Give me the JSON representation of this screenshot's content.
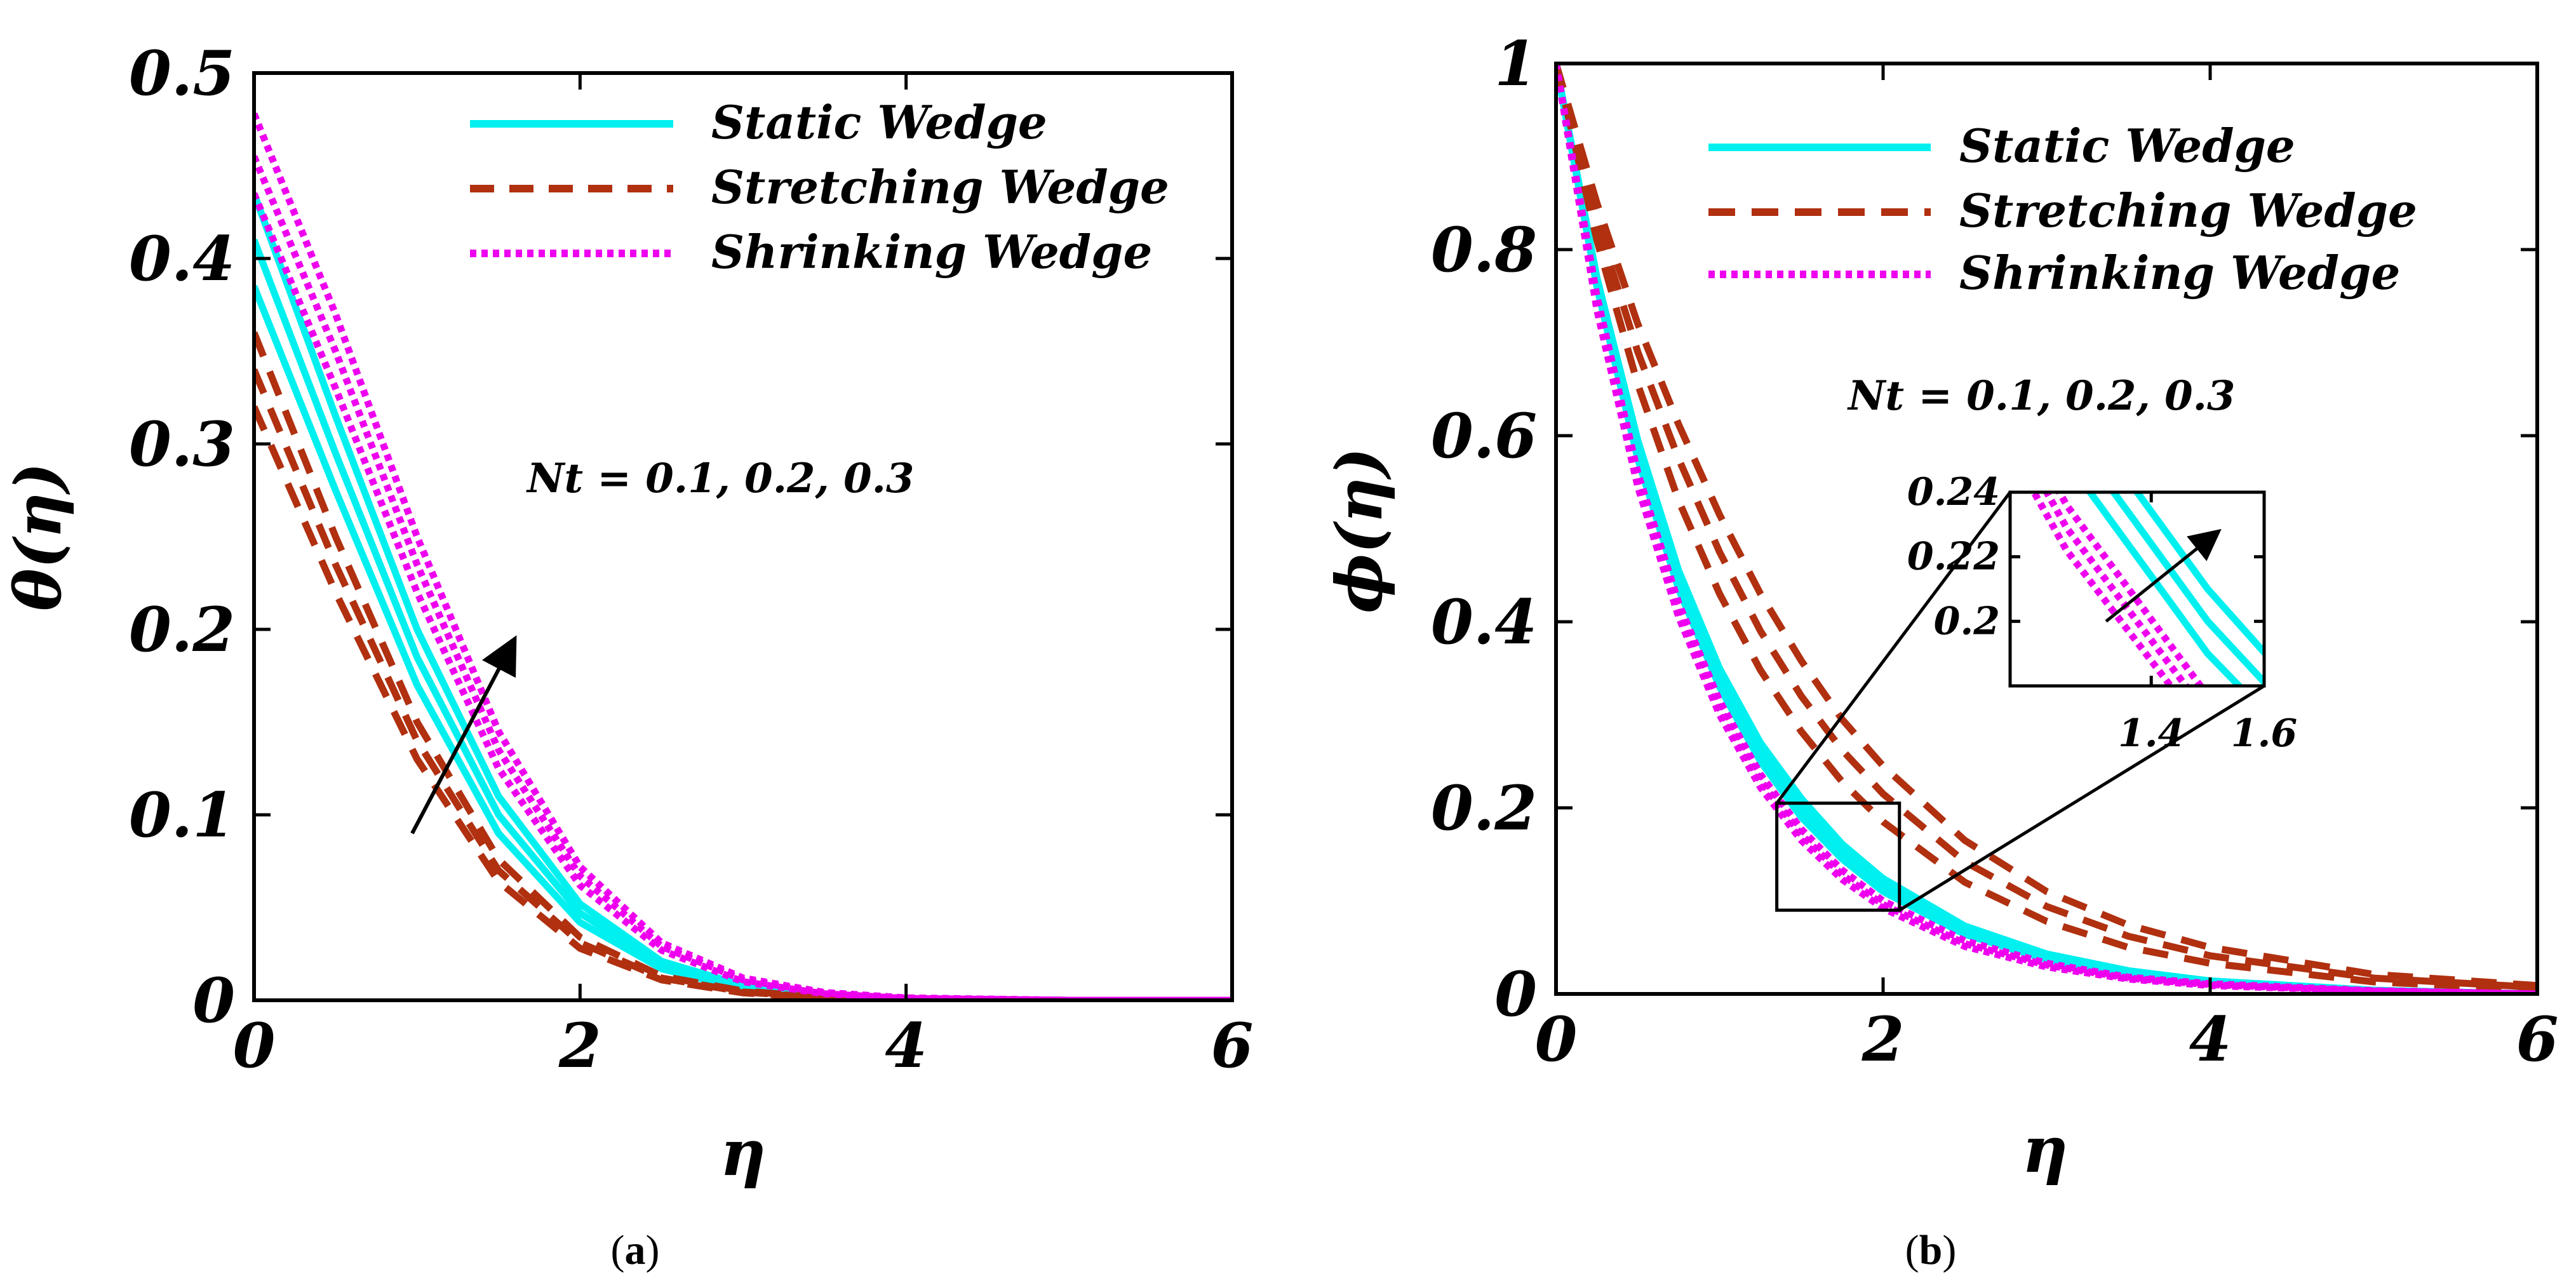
{
  "colors": {
    "static": "#00f0f0",
    "stretching": "#b03010",
    "shrinking": "#ee00ee",
    "axis": "#000000"
  },
  "legend": {
    "static": "Static Wedge",
    "stretching": "Stretching Wedge",
    "shrinking": "Shrinking Wedge"
  },
  "chart_data": [
    {
      "id": "a",
      "type": "line",
      "caption_open": "(",
      "caption_letter": "a",
      "caption_close": ")",
      "title": "",
      "xlabel": "η",
      "ylabel": "θ(η)",
      "xlim": [
        0,
        6
      ],
      "ylim": [
        0,
        0.5
      ],
      "xticks": [
        "0",
        "2",
        "4",
        "6"
      ],
      "yticks": [
        "0",
        "0.1",
        "0.2",
        "0.3",
        "0.4",
        "0.5"
      ],
      "xtick_values": [
        0,
        2,
        4,
        6
      ],
      "ytick_values": [
        0,
        0.1,
        0.2,
        0.3,
        0.4,
        0.5
      ],
      "annotation": "Nt = 0.1, 0.2, 0.3",
      "arrow": {
        "from": [
          0.97,
          0.09
        ],
        "to": [
          1.6,
          0.195
        ]
      },
      "series": [
        {
          "name": "Static Wedge, Nt = 0.1",
          "group": "static",
          "x": [
            0,
            0.5,
            1,
            1.5,
            2,
            2.5,
            3,
            3.5,
            4,
            5,
            6
          ],
          "values": [
            0.385,
            0.275,
            0.17,
            0.09,
            0.042,
            0.017,
            0.006,
            0.002,
            0.0006,
            0,
            0
          ]
        },
        {
          "name": "Static Wedge, Nt = 0.2",
          "group": "static",
          "x": [
            0,
            0.5,
            1,
            1.5,
            2,
            2.5,
            3,
            3.5,
            4,
            5,
            6
          ],
          "values": [
            0.41,
            0.295,
            0.185,
            0.1,
            0.047,
            0.019,
            0.007,
            0.002,
            0.0007,
            0,
            0
          ]
        },
        {
          "name": "Static Wedge, Nt = 0.3",
          "group": "static",
          "x": [
            0,
            0.5,
            1,
            1.5,
            2,
            2.5,
            3,
            3.5,
            4,
            5,
            6
          ],
          "values": [
            0.435,
            0.315,
            0.2,
            0.11,
            0.052,
            0.021,
            0.008,
            0.0025,
            0.0008,
            0,
            0
          ]
        },
        {
          "name": "Stretching Wedge, Nt = 0.1",
          "group": "stretching",
          "x": [
            0,
            0.5,
            1,
            1.5,
            2,
            2.5,
            3,
            3.5,
            4,
            5,
            6
          ],
          "values": [
            0.32,
            0.22,
            0.13,
            0.064,
            0.028,
            0.011,
            0.004,
            0.0012,
            0.0004,
            0,
            0
          ]
        },
        {
          "name": "Stretching Wedge, Nt = 0.2",
          "group": "stretching",
          "x": [
            0,
            0.5,
            1,
            1.5,
            2,
            2.5,
            3,
            3.5,
            4,
            5,
            6
          ],
          "values": [
            0.34,
            0.235,
            0.14,
            0.07,
            0.031,
            0.012,
            0.0045,
            0.0014,
            0.0004,
            0,
            0
          ]
        },
        {
          "name": "Stretching Wedge, Nt = 0.3",
          "group": "stretching",
          "x": [
            0,
            0.5,
            1,
            1.5,
            2,
            2.5,
            3,
            3.5,
            4,
            5,
            6
          ],
          "values": [
            0.36,
            0.25,
            0.15,
            0.076,
            0.034,
            0.013,
            0.005,
            0.0015,
            0.0005,
            0,
            0
          ]
        },
        {
          "name": "Shrinking Wedge, Nt = 0.1",
          "group": "shrinking",
          "x": [
            0,
            0.5,
            1,
            1.5,
            2,
            2.5,
            3,
            3.5,
            4,
            5,
            6
          ],
          "values": [
            0.435,
            0.33,
            0.22,
            0.125,
            0.062,
            0.027,
            0.01,
            0.0035,
            0.001,
            0,
            0
          ]
        },
        {
          "name": "Shrinking Wedge, Nt = 0.2",
          "group": "shrinking",
          "x": [
            0,
            0.5,
            1,
            1.5,
            2,
            2.5,
            3,
            3.5,
            4,
            5,
            6
          ],
          "values": [
            0.455,
            0.35,
            0.235,
            0.135,
            0.067,
            0.029,
            0.011,
            0.004,
            0.0012,
            0,
            0
          ]
        },
        {
          "name": "Shrinking Wedge, Nt = 0.3",
          "group": "shrinking",
          "x": [
            0,
            0.5,
            1,
            1.5,
            2,
            2.5,
            3,
            3.5,
            4,
            5,
            6
          ],
          "values": [
            0.478,
            0.37,
            0.25,
            0.145,
            0.072,
            0.031,
            0.012,
            0.0042,
            0.0013,
            0,
            0
          ]
        }
      ]
    },
    {
      "id": "b",
      "type": "line",
      "caption_open": "(",
      "caption_letter": "b",
      "caption_close": ")",
      "title": "",
      "xlabel": "η",
      "ylabel": "ϕ(η)",
      "xlim": [
        0,
        6
      ],
      "ylim": [
        0,
        1
      ],
      "xticks": [
        "0",
        "2",
        "4",
        "6"
      ],
      "yticks": [
        "0",
        "0.2",
        "0.4",
        "0.6",
        "0.8",
        "1"
      ],
      "xtick_values": [
        0,
        2,
        4,
        6
      ],
      "ytick_values": [
        0,
        0.2,
        0.4,
        0.6,
        0.8,
        1
      ],
      "annotation": "Nt = 0.1, 0.2, 0.3",
      "inset": {
        "source_xlim": [
          1.35,
          2.1
        ],
        "source_ylim": [
          0.09,
          0.205
        ],
        "xlim": [
          1.15,
          1.6
        ],
        "ylim": [
          0.18,
          0.24
        ],
        "xticks": [
          "1.4",
          "1.6"
        ],
        "yticks": [
          "0.2",
          "0.22",
          "0.24"
        ],
        "xtick_values": [
          1.4,
          1.6
        ],
        "ytick_values": [
          0.2,
          0.22,
          0.24
        ],
        "arrow": {
          "from": [
            1.32,
            0.2
          ],
          "to": [
            1.52,
            0.228
          ]
        }
      },
      "series": [
        {
          "name": "Static Wedge, Nt = 0.1",
          "group": "static",
          "x": [
            0,
            0.25,
            0.5,
            0.75,
            1,
            1.25,
            1.5,
            1.75,
            2,
            2.5,
            3,
            3.5,
            4,
            5,
            6
          ],
          "values": [
            1,
            0.76,
            0.575,
            0.435,
            0.33,
            0.25,
            0.19,
            0.145,
            0.11,
            0.064,
            0.037,
            0.021,
            0.012,
            0.003,
            0
          ]
        },
        {
          "name": "Static Wedge, Nt = 0.2",
          "group": "static",
          "x": [
            0,
            0.25,
            0.5,
            0.75,
            1,
            1.25,
            1.5,
            1.75,
            2,
            2.5,
            3,
            3.5,
            4,
            5,
            6
          ],
          "values": [
            1,
            0.765,
            0.585,
            0.445,
            0.34,
            0.26,
            0.2,
            0.153,
            0.117,
            0.068,
            0.04,
            0.023,
            0.013,
            0.0035,
            0
          ]
        },
        {
          "name": "Static Wedge, Nt = 0.3",
          "group": "static",
          "x": [
            0,
            0.25,
            0.5,
            0.75,
            1,
            1.25,
            1.5,
            1.75,
            2,
            2.5,
            3,
            3.5,
            4,
            5,
            6
          ],
          "values": [
            1,
            0.77,
            0.595,
            0.455,
            0.35,
            0.27,
            0.21,
            0.161,
            0.124,
            0.073,
            0.043,
            0.025,
            0.014,
            0.004,
            0
          ]
        },
        {
          "name": "Stretching Wedge, Nt = 0.1",
          "group": "stretching",
          "x": [
            0,
            0.25,
            0.5,
            0.75,
            1,
            1.25,
            1.5,
            1.75,
            2,
            2.5,
            3,
            3.5,
            4,
            5,
            6
          ],
          "values": [
            1,
            0.81,
            0.655,
            0.53,
            0.43,
            0.348,
            0.282,
            0.228,
            0.185,
            0.12,
            0.078,
            0.05,
            0.033,
            0.013,
            0.005
          ]
        },
        {
          "name": "Stretching Wedge, Nt = 0.2",
          "group": "stretching",
          "x": [
            0,
            0.25,
            0.5,
            0.75,
            1,
            1.25,
            1.5,
            1.75,
            2,
            2.5,
            3,
            3.5,
            4,
            5,
            6
          ],
          "values": [
            1,
            0.83,
            0.69,
            0.575,
            0.475,
            0.39,
            0.32,
            0.262,
            0.215,
            0.142,
            0.094,
            0.062,
            0.041,
            0.017,
            0.007
          ]
        },
        {
          "name": "Stretching Wedge, Nt = 0.3",
          "group": "stretching",
          "x": [
            0,
            0.25,
            0.5,
            0.75,
            1,
            1.25,
            1.5,
            1.75,
            2,
            2.5,
            3,
            3.5,
            4,
            5,
            6
          ],
          "values": [
            1,
            0.85,
            0.72,
            0.612,
            0.515,
            0.43,
            0.358,
            0.295,
            0.245,
            0.165,
            0.11,
            0.074,
            0.05,
            0.021,
            0.009
          ]
        },
        {
          "name": "Shrinking Wedge, Nt = 0.1",
          "group": "shrinking",
          "x": [
            0,
            0.25,
            0.5,
            0.75,
            1,
            1.25,
            1.5,
            1.75,
            2,
            2.5,
            3,
            3.5,
            4,
            5,
            6
          ],
          "values": [
            1,
            0.735,
            0.545,
            0.405,
            0.3,
            0.222,
            0.165,
            0.123,
            0.092,
            0.051,
            0.029,
            0.016,
            0.009,
            0.003,
            0
          ]
        },
        {
          "name": "Shrinking Wedge, Nt = 0.2",
          "group": "shrinking",
          "x": [
            0,
            0.25,
            0.5,
            0.75,
            1,
            1.25,
            1.5,
            1.75,
            2,
            2.5,
            3,
            3.5,
            4,
            5,
            6
          ],
          "values": [
            1,
            0.742,
            0.552,
            0.412,
            0.307,
            0.229,
            0.171,
            0.128,
            0.096,
            0.054,
            0.031,
            0.017,
            0.01,
            0.003,
            0
          ]
        },
        {
          "name": "Shrinking Wedge, Nt = 0.3",
          "group": "shrinking",
          "x": [
            0,
            0.25,
            0.5,
            0.75,
            1,
            1.25,
            1.5,
            1.75,
            2,
            2.5,
            3,
            3.5,
            4,
            5,
            6
          ],
          "values": [
            1,
            0.75,
            0.56,
            0.42,
            0.315,
            0.236,
            0.177,
            0.133,
            0.1,
            0.057,
            0.033,
            0.018,
            0.011,
            0.0035,
            0
          ]
        }
      ]
    }
  ]
}
